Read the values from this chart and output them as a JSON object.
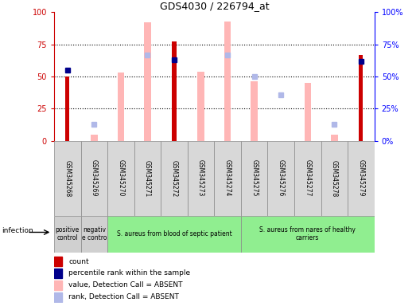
{
  "title": "GDS4030 / 226794_at",
  "samples": [
    "GSM345268",
    "GSM345269",
    "GSM345270",
    "GSM345271",
    "GSM345272",
    "GSM345273",
    "GSM345274",
    "GSM345275",
    "GSM345276",
    "GSM345277",
    "GSM345278",
    "GSM345279"
  ],
  "count_values": [
    50,
    0,
    0,
    0,
    77,
    0,
    0,
    0,
    0,
    0,
    0,
    67
  ],
  "rank_values": [
    55,
    null,
    null,
    null,
    63,
    null,
    null,
    null,
    null,
    null,
    null,
    62
  ],
  "absent_value_bars": [
    null,
    5,
    53,
    92,
    null,
    54,
    93,
    46,
    null,
    45,
    5,
    null
  ],
  "absent_rank_bars": [
    null,
    13,
    null,
    67,
    null,
    null,
    67,
    50,
    36,
    null,
    13,
    null
  ],
  "group_regions": [
    {
      "start": 0,
      "end": 0,
      "label": "positive\ncontrol",
      "color": "#d0d0d0"
    },
    {
      "start": 1,
      "end": 1,
      "label": "negativ\ne contro",
      "color": "#d0d0d0"
    },
    {
      "start": 2,
      "end": 6,
      "label": "S. aureus from blood of septic patient",
      "color": "#90EE90"
    },
    {
      "start": 7,
      "end": 11,
      "label": "S. aureus from nares of healthy\ncarriers",
      "color": "#90EE90"
    }
  ],
  "ylim": [
    0,
    100
  ],
  "yticks": [
    0,
    25,
    50,
    75,
    100
  ],
  "dotted_lines": [
    25,
    50,
    75
  ],
  "count_color": "#cc0000",
  "rank_color": "#00008B",
  "absent_value_color": "#ffb6b6",
  "absent_rank_color": "#b0b8e8",
  "infection_label": "infection",
  "legend_labels": [
    "count",
    "percentile rank within the sample",
    "value, Detection Call = ABSENT",
    "rank, Detection Call = ABSENT"
  ],
  "legend_colors": [
    "#cc0000",
    "#00008B",
    "#ffb6b6",
    "#b0b8e8"
  ]
}
